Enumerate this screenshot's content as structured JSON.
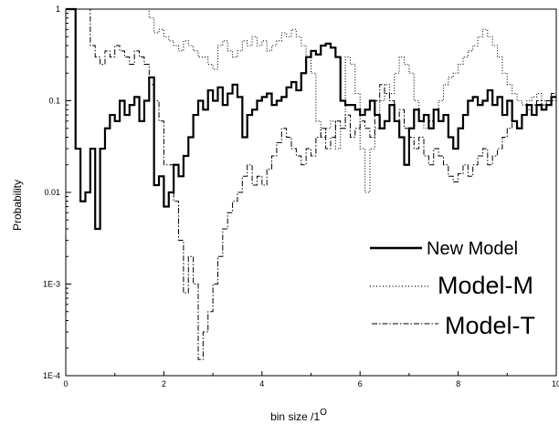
{
  "chart_data": {
    "type": "line",
    "title": "",
    "xlabel": "bin size /1",
    "xlabel_superscript": "O",
    "ylabel": "Probability",
    "xlim": [
      0,
      10
    ],
    "ylim": [
      0.0001,
      1
    ],
    "yscale": "log",
    "grid": false,
    "legend_position": "bottom-right",
    "x_ticks": [
      {
        "value": 0,
        "label": "0"
      },
      {
        "value": 2,
        "label": "2"
      },
      {
        "value": 4,
        "label": "4"
      },
      {
        "value": 6,
        "label": "6"
      },
      {
        "value": 8,
        "label": "8"
      },
      {
        "value": 10,
        "label": "10"
      }
    ],
    "y_ticks": [
      {
        "value": 1,
        "label": "1"
      },
      {
        "value": 0.1,
        "label": "0.1"
      },
      {
        "value": 0.01,
        "label": "0.01"
      },
      {
        "value": 0.001,
        "label": "1E-3"
      },
      {
        "value": 0.0001,
        "label": "1E-4"
      }
    ],
    "series": [
      {
        "name": "New Model",
        "style": "solid",
        "x": [
          0.0,
          0.1,
          0.2,
          0.3,
          0.4,
          0.5,
          0.6,
          0.7,
          0.8,
          0.9,
          1.0,
          1.1,
          1.2,
          1.3,
          1.4,
          1.5,
          1.6,
          1.7,
          1.8,
          1.9,
          2.0,
          2.1,
          2.2,
          2.3,
          2.4,
          2.5,
          2.6,
          2.7,
          2.8,
          2.9,
          3.0,
          3.1,
          3.2,
          3.3,
          3.4,
          3.5,
          3.6,
          3.7,
          3.8,
          3.9,
          4.0,
          4.1,
          4.2,
          4.3,
          4.4,
          4.5,
          4.6,
          4.7,
          4.8,
          4.9,
          5.0,
          5.1,
          5.2,
          5.3,
          5.4,
          5.5,
          5.6,
          5.7,
          5.8,
          5.9,
          6.0,
          6.1,
          6.2,
          6.3,
          6.4,
          6.5,
          6.6,
          6.7,
          6.8,
          6.9,
          7.0,
          7.1,
          7.2,
          7.3,
          7.4,
          7.5,
          7.6,
          7.7,
          7.8,
          7.9,
          8.0,
          8.1,
          8.2,
          8.3,
          8.4,
          8.5,
          8.6,
          8.7,
          8.8,
          8.9,
          9.0,
          9.1,
          9.2,
          9.3,
          9.4,
          9.5,
          9.6,
          9.7,
          9.8,
          9.9
        ],
        "values": [
          1.0,
          1.0,
          0.03,
          0.008,
          0.01,
          0.03,
          0.004,
          0.03,
          0.05,
          0.07,
          0.06,
          0.1,
          0.07,
          0.09,
          0.11,
          0.06,
          0.1,
          0.18,
          0.012,
          0.015,
          0.007,
          0.01,
          0.02,
          0.015,
          0.025,
          0.04,
          0.07,
          0.1,
          0.08,
          0.13,
          0.1,
          0.14,
          0.09,
          0.12,
          0.15,
          0.11,
          0.04,
          0.07,
          0.08,
          0.1,
          0.11,
          0.12,
          0.09,
          0.1,
          0.11,
          0.14,
          0.16,
          0.13,
          0.2,
          0.3,
          0.35,
          0.32,
          0.4,
          0.42,
          0.38,
          0.3,
          0.1,
          0.09,
          0.09,
          0.08,
          0.07,
          0.08,
          0.1,
          0.07,
          0.05,
          0.06,
          0.09,
          0.06,
          0.04,
          0.02,
          0.05,
          0.08,
          0.06,
          0.07,
          0.05,
          0.08,
          0.06,
          0.07,
          0.04,
          0.03,
          0.05,
          0.07,
          0.1,
          0.11,
          0.09,
          0.1,
          0.13,
          0.09,
          0.11,
          0.07,
          0.1,
          0.06,
          0.05,
          0.07,
          0.09,
          0.07,
          0.09,
          0.08,
          0.09,
          0.11
        ]
      },
      {
        "name": "Model-M",
        "style": "dotted",
        "x": [
          0.0,
          0.1,
          0.2,
          0.3,
          0.4,
          0.5,
          0.6,
          0.7,
          0.8,
          0.9,
          1.0,
          1.1,
          1.2,
          1.3,
          1.4,
          1.5,
          1.6,
          1.7,
          1.8,
          1.9,
          2.0,
          2.1,
          2.2,
          2.3,
          2.4,
          2.5,
          2.6,
          2.7,
          2.8,
          2.9,
          3.0,
          3.1,
          3.2,
          3.3,
          3.4,
          3.5,
          3.6,
          3.7,
          3.8,
          3.9,
          4.0,
          4.1,
          4.2,
          4.3,
          4.4,
          4.5,
          4.6,
          4.7,
          4.8,
          4.9,
          5.0,
          5.1,
          5.2,
          5.3,
          5.4,
          5.5,
          5.6,
          5.7,
          5.8,
          5.9,
          6.0,
          6.1,
          6.2,
          6.3,
          6.4,
          6.5,
          6.6,
          6.7,
          6.8,
          6.9,
          7.0,
          7.1,
          7.2,
          7.3,
          7.4,
          7.5,
          7.6,
          7.7,
          7.8,
          7.9,
          8.0,
          8.1,
          8.2,
          8.3,
          8.4,
          8.5,
          8.6,
          8.7,
          8.8,
          8.9,
          9.0,
          9.1,
          9.2,
          9.3,
          9.4,
          9.5,
          9.6,
          9.7,
          9.8,
          9.9
        ],
        "values": [
          1.0,
          1.0,
          1.0,
          1.0,
          1.0,
          1.0,
          1.0,
          1.0,
          1.0,
          1.0,
          1.0,
          1.0,
          1.0,
          1.0,
          1.0,
          1.0,
          1.0,
          0.8,
          0.55,
          0.6,
          0.5,
          0.45,
          0.4,
          0.35,
          0.45,
          0.4,
          0.35,
          0.3,
          0.3,
          0.25,
          0.22,
          0.4,
          0.45,
          0.35,
          0.3,
          0.35,
          0.45,
          0.4,
          0.5,
          0.4,
          0.45,
          0.35,
          0.4,
          0.45,
          0.55,
          0.5,
          0.6,
          0.5,
          0.4,
          0.3,
          0.2,
          0.06,
          0.04,
          0.05,
          0.06,
          0.03,
          0.05,
          0.3,
          0.25,
          0.12,
          0.03,
          0.01,
          0.03,
          0.05,
          0.1,
          0.15,
          0.12,
          0.2,
          0.3,
          0.25,
          0.2,
          0.1,
          0.06,
          0.05,
          0.06,
          0.08,
          0.1,
          0.15,
          0.18,
          0.2,
          0.25,
          0.3,
          0.35,
          0.4,
          0.5,
          0.6,
          0.5,
          0.4,
          0.3,
          0.2,
          0.15,
          0.12,
          0.1,
          0.09,
          0.1,
          0.11,
          0.12,
          0.1,
          0.09,
          0.1
        ]
      },
      {
        "name": "Model-T",
        "style": "dash-dot",
        "x": [
          0.0,
          0.1,
          0.2,
          0.3,
          0.4,
          0.5,
          0.6,
          0.7,
          0.8,
          0.9,
          1.0,
          1.1,
          1.2,
          1.3,
          1.4,
          1.5,
          1.6,
          1.7,
          1.8,
          1.9,
          2.0,
          2.1,
          2.2,
          2.3,
          2.4,
          2.5,
          2.6,
          2.7,
          2.8,
          2.9,
          3.0,
          3.1,
          3.2,
          3.3,
          3.4,
          3.5,
          3.6,
          3.7,
          3.8,
          3.9,
          4.0,
          4.1,
          4.2,
          4.3,
          4.4,
          4.5,
          4.6,
          4.7,
          4.8,
          4.9,
          5.0,
          5.1,
          5.2,
          5.3,
          5.4,
          5.5,
          5.6,
          5.7,
          5.8,
          5.9,
          6.0,
          6.1,
          6.2,
          6.3,
          6.4,
          6.5,
          6.6,
          6.7,
          6.8,
          6.9,
          7.0,
          7.1,
          7.2,
          7.3,
          7.4,
          7.5,
          7.6,
          7.7,
          7.8,
          7.9,
          8.0,
          8.1,
          8.2,
          8.3,
          8.4,
          8.5,
          8.6,
          8.7,
          8.8,
          8.9,
          9.0,
          9.1,
          9.2,
          9.3,
          9.4,
          9.5,
          9.6,
          9.7,
          9.8,
          9.9
        ],
        "values": [
          1.0,
          1.0,
          1.0,
          1.0,
          1.0,
          0.4,
          0.3,
          0.25,
          0.35,
          0.3,
          0.4,
          0.35,
          0.3,
          0.25,
          0.35,
          0.3,
          0.25,
          0.15,
          0.1,
          0.06,
          0.02,
          0.02,
          0.008,
          0.003,
          0.0008,
          0.002,
          0.001,
          0.00015,
          0.0003,
          0.0005,
          0.001,
          0.002,
          0.004,
          0.006,
          0.008,
          0.01,
          0.015,
          0.02,
          0.012,
          0.015,
          0.012,
          0.018,
          0.025,
          0.035,
          0.05,
          0.04,
          0.03,
          0.025,
          0.02,
          0.03,
          0.025,
          0.04,
          0.05,
          0.03,
          0.04,
          0.06,
          0.05,
          0.07,
          0.04,
          0.05,
          0.06,
          0.05,
          0.04,
          0.1,
          0.15,
          0.12,
          0.1,
          0.06,
          0.08,
          0.05,
          0.04,
          0.03,
          0.04,
          0.025,
          0.02,
          0.03,
          0.025,
          0.02,
          0.015,
          0.013,
          0.016,
          0.02,
          0.015,
          0.02,
          0.025,
          0.03,
          0.02,
          0.025,
          0.03,
          0.04,
          0.05,
          0.06,
          0.05,
          0.07,
          0.08,
          0.09,
          0.1,
          0.09,
          0.1,
          0.12
        ]
      }
    ]
  }
}
